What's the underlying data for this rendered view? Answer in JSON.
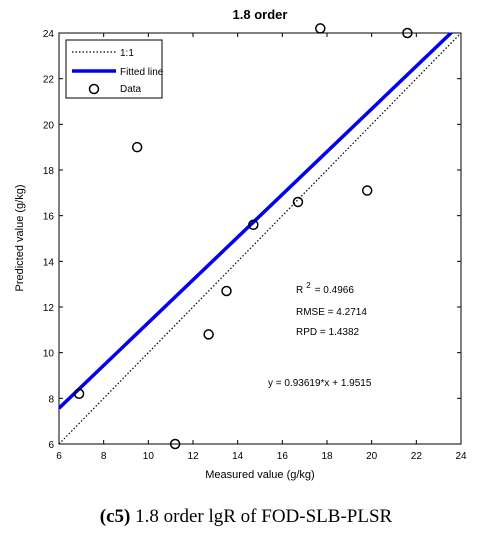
{
  "chart_data": {
    "type": "scatter",
    "title": "1.8 order",
    "xlabel": "Measured value (g/kg)",
    "ylabel": "Predicted value (g/kg)",
    "xlim": [
      6,
      24
    ],
    "ylim": [
      6,
      24
    ],
    "xticks": [
      "6",
      "8",
      "10",
      "12",
      "14",
      "16",
      "18",
      "20",
      "22",
      "24"
    ],
    "yticks": [
      "6",
      "8",
      "10",
      "12",
      "14",
      "16",
      "18",
      "20",
      "22",
      "24"
    ],
    "points": [
      {
        "x": 6.9,
        "y": 8.2
      },
      {
        "x": 9.5,
        "y": 19.0
      },
      {
        "x": 11.2,
        "y": 6.0
      },
      {
        "x": 12.7,
        "y": 10.8
      },
      {
        "x": 13.5,
        "y": 12.7
      },
      {
        "x": 14.7,
        "y": 15.6
      },
      {
        "x": 16.7,
        "y": 16.6
      },
      {
        "x": 17.7,
        "y": 24.2
      },
      {
        "x": 19.8,
        "y": 17.1
      },
      {
        "x": 21.6,
        "y": 24.0
      }
    ],
    "fit": {
      "slope": 0.93619,
      "intercept": 1.9515
    },
    "legend": {
      "placement": "top-left",
      "items": [
        {
          "label": "1:1",
          "style": "dotted"
        },
        {
          "label": "Fitted line",
          "style": "line"
        },
        {
          "label": "Data",
          "style": "circle"
        }
      ]
    },
    "stats": {
      "r2_label": "R",
      "r2_sup": "2",
      "r2_value": "=  0.4966",
      "rmse": "RMSE = 4.2714",
      "rpd": "RPD  = 1.4382",
      "equation": "y = 0.93619*x + 1.9515"
    },
    "colors": {
      "fit": "#0000ee",
      "oneToOne": "#000000",
      "points": "#000000"
    },
    "grid": false
  },
  "caption": {
    "label": "(c5)",
    "text": " 1.8 order lgR of FOD-SLB-PLSR"
  }
}
